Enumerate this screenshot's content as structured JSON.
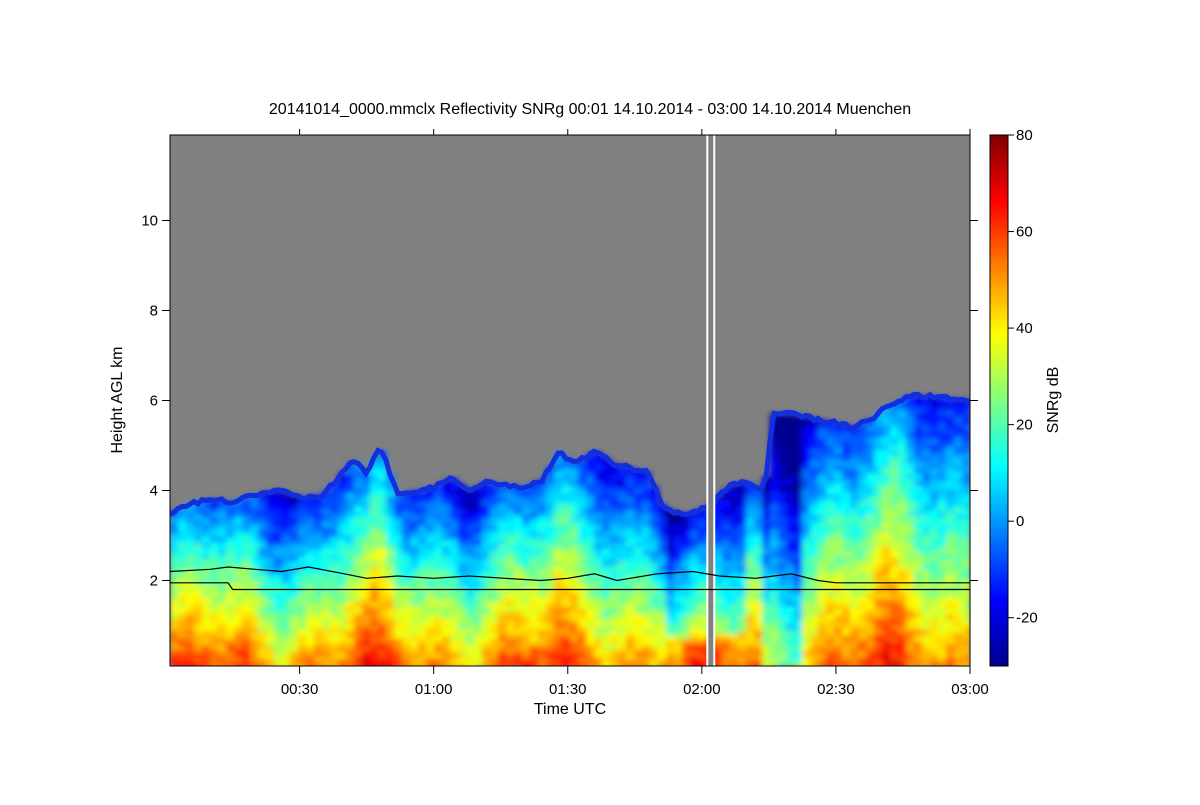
{
  "chart_data": {
    "type": "heatmap",
    "title": "20141014_0000.mmclx Reflectivity SNRg   00:01 14.10.2014 - 03:00 14.10.2014 Muenchen",
    "xlabel": "Time UTC",
    "ylabel": "Height AGL km",
    "colorbar_label": "SNRg dB",
    "x_unit": "minutes UTC",
    "xlim": [
      1,
      180
    ],
    "ylim": [
      0.1,
      11.9
    ],
    "x_ticks": [
      {
        "value": 30,
        "label": "00:30"
      },
      {
        "value": 60,
        "label": "01:00"
      },
      {
        "value": 90,
        "label": "01:30"
      },
      {
        "value": 120,
        "label": "02:00"
      },
      {
        "value": 150,
        "label": "02:30"
      },
      {
        "value": 180,
        "label": "03:00"
      }
    ],
    "y_ticks": [
      {
        "value": 2,
        "label": "2"
      },
      {
        "value": 4,
        "label": "4"
      },
      {
        "value": 6,
        "label": "6"
      },
      {
        "value": 8,
        "label": "8"
      },
      {
        "value": 10,
        "label": "10"
      }
    ],
    "colorbar": {
      "range": [
        -30,
        80
      ],
      "ticks": [
        {
          "value": -20,
          "label": "-20"
        },
        {
          "value": 0,
          "label": "0"
        },
        {
          "value": 20,
          "label": "20"
        },
        {
          "value": 40,
          "label": "40"
        },
        {
          "value": 60,
          "label": "60"
        },
        {
          "value": 80,
          "label": "80"
        }
      ],
      "colormap": [
        "#00008f",
        "#0000ff",
        "#0080ff",
        "#00ffff",
        "#80ff80",
        "#ffff00",
        "#ff8000",
        "#ff0000",
        "#800000"
      ]
    },
    "no_signal_color": "#808080",
    "cloud_top_km": [
      {
        "t": 1,
        "h": 3.5
      },
      {
        "t": 5,
        "h": 3.7
      },
      {
        "t": 10,
        "h": 3.8
      },
      {
        "t": 15,
        "h": 3.75
      },
      {
        "t": 20,
        "h": 3.9
      },
      {
        "t": 25,
        "h": 4.0
      },
      {
        "t": 30,
        "h": 3.85
      },
      {
        "t": 35,
        "h": 3.9
      },
      {
        "t": 38,
        "h": 4.2
      },
      {
        "t": 42,
        "h": 4.7
      },
      {
        "t": 45,
        "h": 4.4
      },
      {
        "t": 48,
        "h": 5.0
      },
      {
        "t": 52,
        "h": 3.9
      },
      {
        "t": 56,
        "h": 4.0
      },
      {
        "t": 60,
        "h": 4.05
      },
      {
        "t": 64,
        "h": 4.3
      },
      {
        "t": 68,
        "h": 4.0
      },
      {
        "t": 72,
        "h": 4.2
      },
      {
        "t": 76,
        "h": 4.1
      },
      {
        "t": 80,
        "h": 4.1
      },
      {
        "t": 84,
        "h": 4.2
      },
      {
        "t": 88,
        "h": 4.85
      },
      {
        "t": 92,
        "h": 4.6
      },
      {
        "t": 96,
        "h": 4.9
      },
      {
        "t": 100,
        "h": 4.6
      },
      {
        "t": 104,
        "h": 4.5
      },
      {
        "t": 108,
        "h": 4.4
      },
      {
        "t": 111,
        "h": 3.7
      },
      {
        "t": 114,
        "h": 3.5
      },
      {
        "t": 118,
        "h": 3.5
      },
      {
        "t": 122,
        "h": 3.7
      },
      {
        "t": 126,
        "h": 4.1
      },
      {
        "t": 130,
        "h": 4.2
      },
      {
        "t": 134,
        "h": 4.0
      },
      {
        "t": 136,
        "h": 5.7
      },
      {
        "t": 140,
        "h": 5.7
      },
      {
        "t": 145,
        "h": 5.6
      },
      {
        "t": 150,
        "h": 5.5
      },
      {
        "t": 154,
        "h": 5.4
      },
      {
        "t": 158,
        "h": 5.6
      },
      {
        "t": 162,
        "h": 5.9
      },
      {
        "t": 166,
        "h": 6.1
      },
      {
        "t": 170,
        "h": 6.1
      },
      {
        "t": 175,
        "h": 6.05
      },
      {
        "t": 180,
        "h": 6.0
      }
    ],
    "series": [
      {
        "points": [
          {
            "t": 1,
            "h": 2.2
          },
          {
            "t": 10,
            "h": 2.25
          },
          {
            "t": 14,
            "h": 2.3
          },
          {
            "t": 20,
            "h": 2.25
          },
          {
            "t": 26,
            "h": 2.2
          },
          {
            "t": 32,
            "h": 2.3
          },
          {
            "t": 40,
            "h": 2.15
          },
          {
            "t": 45,
            "h": 2.05
          },
          {
            "t": 52,
            "h": 2.1
          },
          {
            "t": 60,
            "h": 2.05
          },
          {
            "t": 68,
            "h": 2.1
          },
          {
            "t": 76,
            "h": 2.05
          },
          {
            "t": 84,
            "h": 2.0
          },
          {
            "t": 90,
            "h": 2.05
          },
          {
            "t": 96,
            "h": 2.15
          },
          {
            "t": 101,
            "h": 2.0
          },
          {
            "t": 110,
            "h": 2.15
          },
          {
            "t": 118,
            "h": 2.2
          },
          {
            "t": 124,
            "h": 2.1
          },
          {
            "t": 132,
            "h": 2.05
          },
          {
            "t": 140,
            "h": 2.15
          },
          {
            "t": 146,
            "h": 2.0
          },
          {
            "t": 150,
            "h": 1.95
          },
          {
            "t": 165,
            "h": 1.95
          },
          {
            "t": 180,
            "h": 1.95
          }
        ]
      },
      {
        "points": [
          {
            "t": 1,
            "h": 1.95
          },
          {
            "t": 14,
            "h": 1.95
          },
          {
            "t": 15,
            "h": 1.8
          },
          {
            "t": 180,
            "h": 1.8
          }
        ]
      }
    ],
    "data_gap_minutes": [
      121,
      123
    ]
  }
}
